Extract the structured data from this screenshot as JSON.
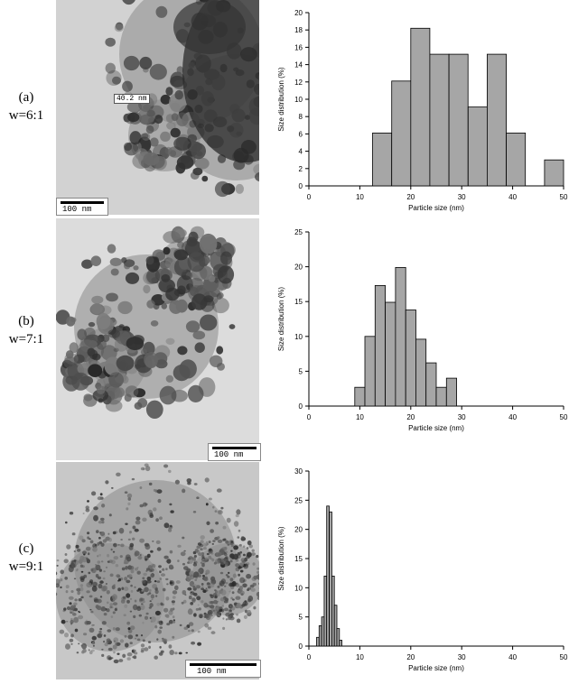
{
  "panels": [
    {
      "label_letter": "(a)",
      "label_ratio": "w=6:1",
      "scalebar_text": "100 nm",
      "measure_text": "40.2 nm",
      "tem_tone": "#4a4a4a",
      "chart_data": {
        "type": "bar",
        "xlabel": "Particle size (nm)",
        "ylabel": "Size distribution (%)",
        "xlim": [
          0,
          50
        ],
        "ylim": [
          0,
          20
        ],
        "xticks": [
          0,
          10,
          20,
          30,
          40,
          50
        ],
        "yticks": [
          0,
          2,
          4,
          6,
          8,
          10,
          12,
          14,
          16,
          18,
          20
        ],
        "bins": [
          {
            "x0": 12.5,
            "x1": 16.25,
            "value": 6.1
          },
          {
            "x0": 16.25,
            "x1": 20.0,
            "value": 12.1
          },
          {
            "x0": 20.0,
            "x1": 23.75,
            "value": 18.2
          },
          {
            "x0": 23.75,
            "x1": 27.5,
            "value": 15.2
          },
          {
            "x0": 27.5,
            "x1": 31.25,
            "value": 15.2
          },
          {
            "x0": 31.25,
            "x1": 35.0,
            "value": 9.1
          },
          {
            "x0": 35.0,
            "x1": 38.75,
            "value": 15.2
          },
          {
            "x0": 38.75,
            "x1": 42.5,
            "value": 6.1
          },
          {
            "x0": 46.25,
            "x1": 50.0,
            "value": 3.0
          }
        ],
        "bar_color": "#a6a6a6"
      }
    },
    {
      "label_letter": "(b)",
      "label_ratio": "w=7:1",
      "scalebar_text": "100 nm",
      "measure_text": "",
      "tem_tone": "#5a5a5a",
      "chart_data": {
        "type": "bar",
        "xlabel": "Particle size (nm)",
        "ylabel": "Size distribution (%)",
        "xlim": [
          0,
          50
        ],
        "ylim": [
          0,
          25
        ],
        "xticks": [
          0,
          10,
          20,
          30,
          40,
          50
        ],
        "yticks": [
          0,
          5,
          10,
          15,
          20,
          25
        ],
        "bins": [
          {
            "x0": 9.0,
            "x1": 11.0,
            "value": 2.7
          },
          {
            "x0": 11.0,
            "x1": 13.0,
            "value": 10.0
          },
          {
            "x0": 13.0,
            "x1": 15.0,
            "value": 17.3
          },
          {
            "x0": 15.0,
            "x1": 17.0,
            "value": 14.9
          },
          {
            "x0": 17.0,
            "x1": 19.0,
            "value": 19.9
          },
          {
            "x0": 19.0,
            "x1": 21.0,
            "value": 13.8
          },
          {
            "x0": 21.0,
            "x1": 23.0,
            "value": 9.6
          },
          {
            "x0": 23.0,
            "x1": 25.0,
            "value": 6.2
          },
          {
            "x0": 25.0,
            "x1": 27.0,
            "value": 2.7
          },
          {
            "x0": 27.0,
            "x1": 29.0,
            "value": 4.0
          }
        ],
        "bar_color": "#a6a6a6"
      }
    },
    {
      "label_letter": "(c)",
      "label_ratio": "w=9:1",
      "scalebar_text": "100 nm",
      "measure_text": "",
      "tem_tone": "#6a6a6a",
      "chart_data": {
        "type": "bar",
        "xlabel": "Particle size (nm)",
        "ylabel": "Size distribution (%)",
        "xlim": [
          0,
          50
        ],
        "ylim": [
          0,
          30
        ],
        "xticks": [
          0,
          10,
          20,
          30,
          40,
          50
        ],
        "yticks": [
          0,
          5,
          10,
          15,
          20,
          25,
          30
        ],
        "bins": [
          {
            "x0": 1.5,
            "x1": 2.0,
            "value": 1.5
          },
          {
            "x0": 2.0,
            "x1": 2.5,
            "value": 3.5
          },
          {
            "x0": 2.5,
            "x1": 3.0,
            "value": 5.0
          },
          {
            "x0": 3.0,
            "x1": 3.5,
            "value": 12.0
          },
          {
            "x0": 3.5,
            "x1": 4.0,
            "value": 24.0
          },
          {
            "x0": 4.0,
            "x1": 4.5,
            "value": 23.0
          },
          {
            "x0": 4.5,
            "x1": 5.0,
            "value": 12.0
          },
          {
            "x0": 5.0,
            "x1": 5.5,
            "value": 7.0
          },
          {
            "x0": 5.5,
            "x1": 6.0,
            "value": 3.0
          },
          {
            "x0": 6.0,
            "x1": 6.5,
            "value": 1.0
          }
        ],
        "bar_color": "#a6a6a6"
      }
    }
  ]
}
